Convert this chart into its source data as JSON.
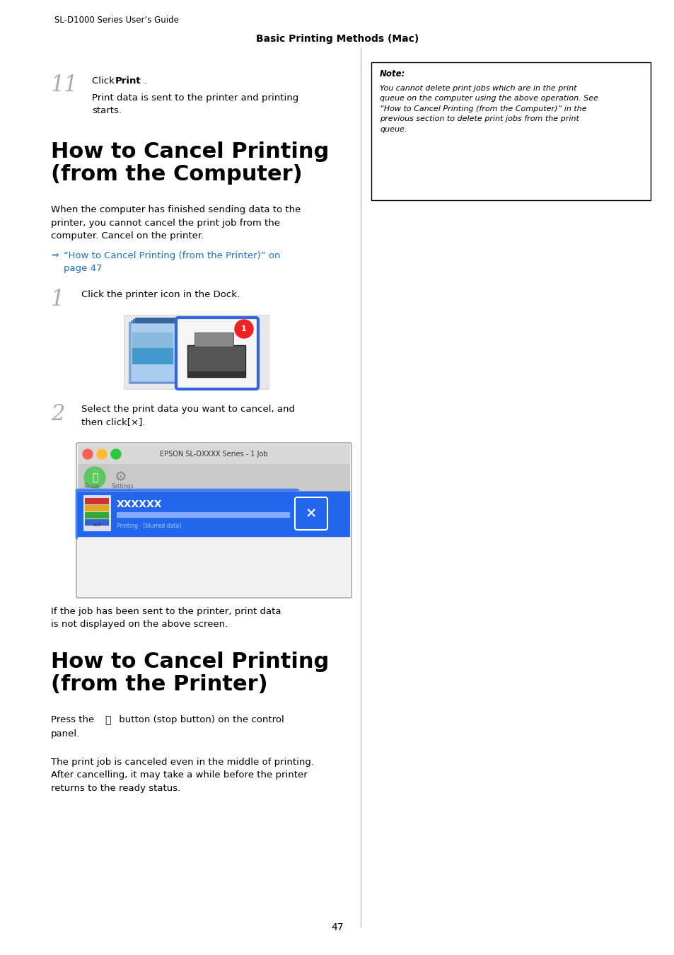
{
  "page_bg": "#ffffff",
  "header_text": "SL-D1000 Series User’s Guide",
  "center_header": "Basic Printing Methods (Mac)",
  "note_title": "Note:",
  "note_text": "You cannot delete print jobs which are in the print\nqueue on the computer using the above operation. See\n“How to Cancel Printing (from the Computer)” in the\nprevious section to delete print jobs from the print\nqueue.",
  "step11_num": "11",
  "step11_click": "Click ",
  "step11_bold": "Print",
  "step11_dot": ".",
  "step11_sub": "Print data is sent to the printer and printing\nstarts.",
  "section1_title_line1": "How to Cancel Printing",
  "section1_title_line2": "(from the Computer)",
  "section1_para": "When the computer has finished sending data to the\nprinter, you cannot cancel the print job from the\ncomputer. Cancel on the printer.",
  "link_text_line1": "“How to Cancel Printing (from the Printer)” on",
  "link_text_line2": "page 47",
  "step1_num": "1",
  "step1_text": "Click the printer icon in the Dock.",
  "step2_num": "2",
  "step2_text": "Select the print data you want to cancel, and\nthen click[×].",
  "ss_title": "EPSON SL-DXXXX Series - 1 Job",
  "ss_job": "XXXXXX",
  "ss_printing": "Printing -",
  "step2_sub": "If the job has been sent to the printer, print data\nis not displayed on the above screen.",
  "section2_title_line1": "How to Cancel Printing",
  "section2_title_line2": "(from the Printer)",
  "section2_para1a": "Press the ",
  "section2_para1b": " button (stop button) on the control",
  "section2_para1c": "panel.",
  "section2_para2": "The print job is canceled even in the middle of printing.\nAfter cancelling, it may take a while before the printer\nreturns to the ready status.",
  "page_num": "47",
  "text_color": "#000000",
  "link_color": "#1a6fba",
  "step_num_color": "#aaaaaa",
  "note_border": "#000000",
  "ss_bg": "#f0f0f0",
  "ss_titlebar_bg": "#d0d0d0",
  "ss_toolbar_bg": "#c8c8c8",
  "ss_blue": "#1a6fdd",
  "ss_job_bg_blue": "#1a6fdd",
  "divider_color": "#aaaaaa"
}
